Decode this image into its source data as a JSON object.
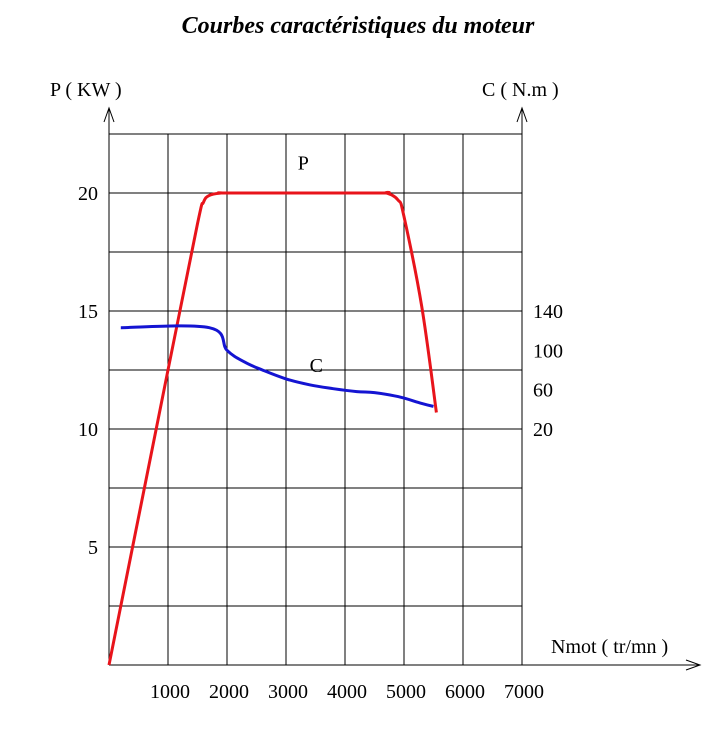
{
  "chart_data": {
    "type": "line",
    "title": "Courbes caractéristiques  du moteur",
    "xlabel": "Nmot ( tr/mn )",
    "ylabel_left": "P ( KW )",
    "ylabel_right": "C ( N.m )",
    "xlim": [
      0,
      7000
    ],
    "ylim_left": [
      0,
      22.5
    ],
    "x_ticks": [
      "1000",
      "2000",
      "3000",
      "4000",
      "5000",
      "6000",
      "7000"
    ],
    "y_left_ticks": [
      "5",
      "10",
      "15",
      "20"
    ],
    "y_left_tick_values": [
      5,
      10,
      15,
      20
    ],
    "y_right_ticks": [
      "20",
      "60",
      "100",
      "140"
    ],
    "y_right_tick_values": [
      20,
      60,
      100,
      140
    ],
    "right_axis_map": {
      "value_a": 20,
      "pleft_a": 10,
      "value_b": 140,
      "pleft_b": 15
    },
    "grid": true,
    "series": [
      {
        "name": "P",
        "axis": "left",
        "color": "#e8141b",
        "label_at": [
          3200,
          21.0
        ],
        "x": [
          0,
          1000,
          1500,
          1600,
          1700,
          1900,
          2100,
          4500,
          4700,
          4900,
          5000,
          5300,
          5550
        ],
        "y": [
          0,
          12.5,
          18.7,
          19.6,
          19.9,
          20.0,
          20.0,
          20.0,
          20.0,
          19.7,
          19.0,
          15.2,
          10.7
        ]
      },
      {
        "name": "C",
        "axis": "right",
        "color": "#1414d2",
        "label_at": [
          3400,
          78
        ],
        "x": [
          200,
          1700,
          2000,
          2300,
          2600,
          3000,
          3400,
          3800,
          4200,
          4500,
          4900,
          5300,
          5500
        ],
        "y": [
          123,
          123,
          100,
          88,
          80,
          71,
          65,
          61,
          58,
          57,
          53,
          46,
          43
        ]
      }
    ]
  }
}
